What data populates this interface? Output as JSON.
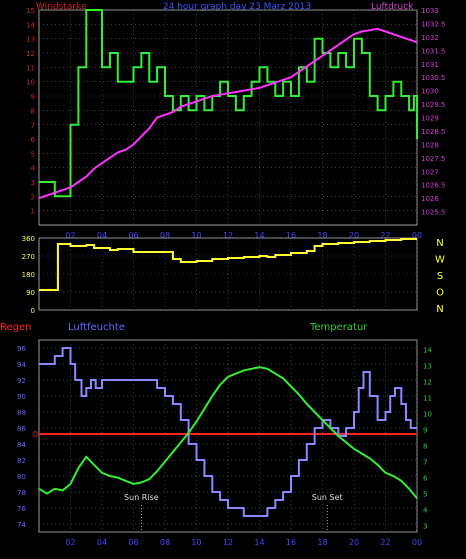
{
  "title": "24 hour graph day 23 Marz 2013",
  "colors": {
    "wind": "#33ee33",
    "pressure": "#ff33ff",
    "direction": "#ffff33",
    "humidity": "#8888ff",
    "temperature": "#33ee33",
    "rain": "#ff2222",
    "axis_left_top": "#cc2222",
    "axis_right_top": "#cc44cc",
    "axis_humidity": "#6666ff",
    "axis_temp": "#33cc33",
    "grid": "#666666",
    "hour_labels": "#4444ff",
    "title": "#3355ff"
  },
  "x_ticks": [
    "02",
    "04",
    "06",
    "08",
    "10",
    "12",
    "14",
    "16",
    "18",
    "20",
    "22",
    "00"
  ],
  "chart_data": [
    {
      "type": "line",
      "name": "wind-pressure",
      "title": "24 hour graph day 23 Marz 2013",
      "left_label": "Windstarke",
      "right_label": "Luftdruck",
      "x_range": [
        0,
        24
      ],
      "y_left": {
        "min": 0,
        "max": 15,
        "ticks": [
          "1",
          "2",
          "3",
          "4",
          "5",
          "6",
          "7",
          "8",
          "9",
          "10",
          "11",
          "12",
          "13",
          "14",
          "15"
        ]
      },
      "y_right": {
        "min": 1025,
        "max": 1033,
        "ticks": [
          "1025.5",
          "1026",
          "1026.5",
          "1027",
          "1027.5",
          "1028",
          "1028.5",
          "1029",
          "1029.5",
          "1030",
          "1030.5",
          "1031",
          "1031.5",
          "1032",
          "1032.5",
          "1033"
        ]
      },
      "series": [
        {
          "key": "wind",
          "axis": "left",
          "step": true,
          "x": [
            0,
            1,
            2,
            2.5,
            3,
            4,
            4.5,
            5,
            6,
            6.5,
            7,
            7.5,
            8,
            8.5,
            9,
            9.5,
            10,
            10.5,
            11,
            11.5,
            12,
            12.5,
            13,
            13.5,
            14,
            14.5,
            15,
            15.5,
            16,
            16.5,
            17,
            17.5,
            18,
            18.5,
            19,
            19.5,
            20,
            20.5,
            21,
            21.5,
            22,
            22.5,
            23,
            23.5,
            23.8,
            24
          ],
          "y": [
            3,
            2,
            7,
            11,
            15,
            11,
            12,
            10,
            11,
            12,
            10,
            11,
            9,
            8,
            9,
            8,
            9,
            8,
            9,
            10,
            9,
            8,
            9,
            10,
            11,
            10,
            9,
            10,
            9,
            11,
            10,
            13,
            12,
            11,
            12,
            11,
            13,
            12,
            9,
            8,
            9,
            10,
            9,
            8,
            9,
            6
          ]
        },
        {
          "key": "pressure",
          "axis": "right",
          "step": false,
          "x": [
            0,
            0.5,
            1,
            1.5,
            2,
            2.5,
            3,
            3.5,
            4,
            4.5,
            5,
            5.5,
            6,
            6.5,
            7,
            7.5,
            8,
            8.5,
            9,
            9.5,
            10,
            10.5,
            11,
            11.5,
            12,
            12.5,
            13,
            13.5,
            14,
            14.5,
            15,
            15.5,
            16,
            16.5,
            17,
            17.5,
            18,
            18.5,
            19,
            19.5,
            20,
            20.5,
            21,
            21.5,
            22,
            22.5,
            23,
            23.5,
            24
          ],
          "y": [
            1026.0,
            1026.1,
            1026.2,
            1026.3,
            1026.4,
            1026.6,
            1026.8,
            1027.1,
            1027.3,
            1027.5,
            1027.7,
            1027.8,
            1028.0,
            1028.3,
            1028.6,
            1029.0,
            1029.1,
            1029.2,
            1029.4,
            1029.5,
            1029.6,
            1029.7,
            1029.8,
            1029.85,
            1029.9,
            1029.95,
            1030.0,
            1030.05,
            1030.1,
            1030.2,
            1030.3,
            1030.4,
            1030.5,
            1030.7,
            1030.9,
            1031.1,
            1031.3,
            1031.5,
            1031.7,
            1031.9,
            1032.1,
            1032.2,
            1032.25,
            1032.3,
            1032.2,
            1032.1,
            1032.0,
            1031.9,
            1031.8
          ]
        }
      ]
    },
    {
      "type": "line",
      "name": "wind-direction",
      "x_range": [
        0,
        24
      ],
      "y_left": {
        "min": 0,
        "max": 360,
        "ticks": [
          "0",
          "90",
          "180",
          "270",
          "360"
        ]
      },
      "compass_labels": [
        "N",
        "W",
        "S",
        "O",
        "N"
      ],
      "series": [
        {
          "key": "direction",
          "step": true,
          "x": [
            0,
            1,
            1.2,
            2,
            3,
            3.5,
            4.5,
            5,
            6,
            7,
            8,
            8.5,
            9,
            10,
            11,
            12,
            13,
            14,
            14.5,
            15,
            16,
            17,
            17.5,
            18,
            19,
            20,
            21,
            22,
            23,
            24
          ],
          "y": [
            100,
            100,
            330,
            320,
            325,
            310,
            300,
            305,
            290,
            290,
            290,
            255,
            240,
            245,
            255,
            260,
            265,
            270,
            265,
            275,
            285,
            295,
            320,
            330,
            335,
            340,
            345,
            350,
            355,
            355
          ]
        }
      ]
    },
    {
      "type": "line",
      "name": "humidity-temperature",
      "left_label": "Regen",
      "mid_label": "Luftfeuchte",
      "right_label": "Temperatur",
      "x_range": [
        0,
        24
      ],
      "y_left": {
        "min": 73,
        "max": 97,
        "ticks": [
          "74",
          "76",
          "78",
          "80",
          "82",
          "84",
          "86",
          "88",
          "90",
          "92",
          "94",
          "96"
        ]
      },
      "y_right": {
        "min": 2.6,
        "max": 14.6,
        "ticks": [
          "3",
          "4",
          "5",
          "6",
          "7",
          "8",
          "9",
          "10",
          "11",
          "12",
          "13",
          "14"
        ]
      },
      "rain_value": "0",
      "annotations": [
        {
          "label": "Sun Rise",
          "x": 6.5
        },
        {
          "label": "Sun Set",
          "x": 18.3
        }
      ],
      "series": [
        {
          "key": "humidity",
          "axis": "left",
          "step": true,
          "x": [
            0,
            1,
            1.5,
            2,
            2.3,
            2.7,
            3,
            3.3,
            3.6,
            4,
            5,
            6,
            7,
            7.5,
            8,
            8.5,
            9,
            9.5,
            10,
            10.5,
            11,
            11.5,
            12,
            12.5,
            13,
            13.5,
            14,
            14.5,
            15,
            15.5,
            16,
            16.5,
            17,
            17.5,
            18,
            18.5,
            19,
            19.5,
            20,
            20.3,
            20.6,
            21,
            21.5,
            22,
            22.3,
            22.6,
            23,
            23.3,
            23.6,
            24
          ],
          "y": [
            94,
            95,
            96,
            94,
            92,
            90,
            91,
            92,
            91,
            92,
            92,
            92,
            92,
            91,
            90,
            89,
            87,
            84,
            82,
            80,
            78,
            77,
            76,
            76,
            75,
            75,
            75,
            76,
            77,
            78,
            80,
            82,
            84,
            86,
            87,
            86,
            85,
            86,
            88,
            91,
            93,
            90,
            87,
            88,
            90,
            91,
            89,
            87,
            86,
            86
          ]
        },
        {
          "key": "temperature",
          "axis": "right",
          "step": false,
          "x": [
            0,
            0.5,
            1,
            1.5,
            2,
            2.5,
            3,
            3.5,
            4,
            4.5,
            5,
            5.5,
            6,
            6.5,
            7,
            7.5,
            8,
            8.5,
            9,
            9.5,
            10,
            10.5,
            11,
            11.5,
            12,
            12.5,
            13,
            13.5,
            14,
            14.5,
            15,
            15.5,
            16,
            16.5,
            17,
            17.5,
            18,
            18.5,
            19,
            19.5,
            20,
            20.5,
            21,
            21.5,
            22,
            22.5,
            23,
            23.5,
            24
          ],
          "y": [
            5.3,
            5.0,
            5.3,
            5.2,
            5.6,
            6.6,
            7.3,
            6.8,
            6.3,
            6.1,
            6.0,
            5.8,
            5.6,
            5.7,
            5.9,
            6.4,
            7.0,
            7.6,
            8.2,
            8.8,
            9.5,
            10.3,
            11.1,
            11.8,
            12.3,
            12.5,
            12.7,
            12.8,
            12.9,
            12.8,
            12.5,
            12.2,
            11.7,
            11.2,
            10.6,
            10.1,
            9.6,
            9.1,
            8.6,
            8.2,
            7.8,
            7.5,
            7.2,
            6.8,
            6.3,
            6.1,
            5.8,
            5.3,
            4.7
          ]
        }
      ]
    }
  ]
}
